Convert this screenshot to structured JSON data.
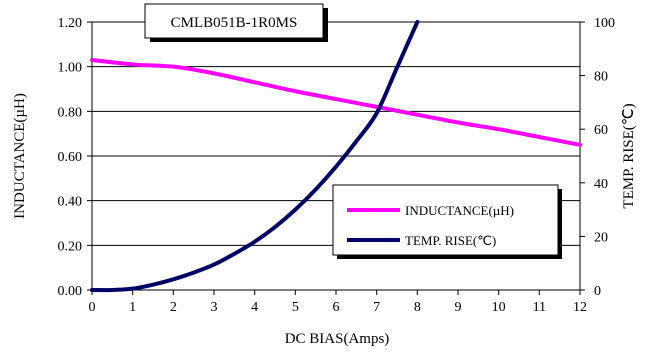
{
  "chart_data": {
    "type": "line",
    "title": "CMLB051B-1R0MS",
    "xlabel": "DC BIAS(Amps)",
    "ylabel": "INDUCTANCE(µH)",
    "y2label": "TEMP. RISE(℃)",
    "xlim": [
      0,
      12
    ],
    "ylim": [
      0,
      1.2
    ],
    "y2lim": [
      0,
      100
    ],
    "x_ticks": [
      "0",
      "1",
      "2",
      "3",
      "4",
      "5",
      "6",
      "7",
      "8",
      "9",
      "10",
      "11",
      "12"
    ],
    "y_ticks": [
      "0.00",
      "0.20",
      "0.40",
      "0.60",
      "0.80",
      "1.00",
      "1.20"
    ],
    "y2_ticks": [
      "0",
      "20",
      "40",
      "60",
      "80",
      "100"
    ],
    "grid": "horizontal",
    "legend_position": "lower-right",
    "series": [
      {
        "name": "INDUCTANCE(µH)",
        "axis": "left",
        "color": "#ff00ff",
        "x": [
          0,
          1,
          2,
          3,
          4,
          5,
          6,
          7,
          8,
          9,
          10,
          11,
          12
        ],
        "y": [
          1.03,
          1.01,
          1.0,
          0.97,
          0.93,
          0.89,
          0.855,
          0.82,
          0.785,
          0.75,
          0.72,
          0.685,
          0.65
        ]
      },
      {
        "name": "TEMP. RISE(℃)",
        "axis": "right",
        "color": "#000066",
        "x": [
          0,
          0.5,
          1,
          1.5,
          2,
          2.5,
          3,
          3.5,
          4,
          4.5,
          5,
          5.5,
          6,
          6.5,
          7,
          7.5,
          8
        ],
        "y": [
          0,
          0,
          0.5,
          2,
          4,
          6.5,
          9.5,
          13.5,
          18,
          23.5,
          30,
          37.5,
          46,
          55.5,
          66,
          83,
          100
        ]
      }
    ]
  }
}
